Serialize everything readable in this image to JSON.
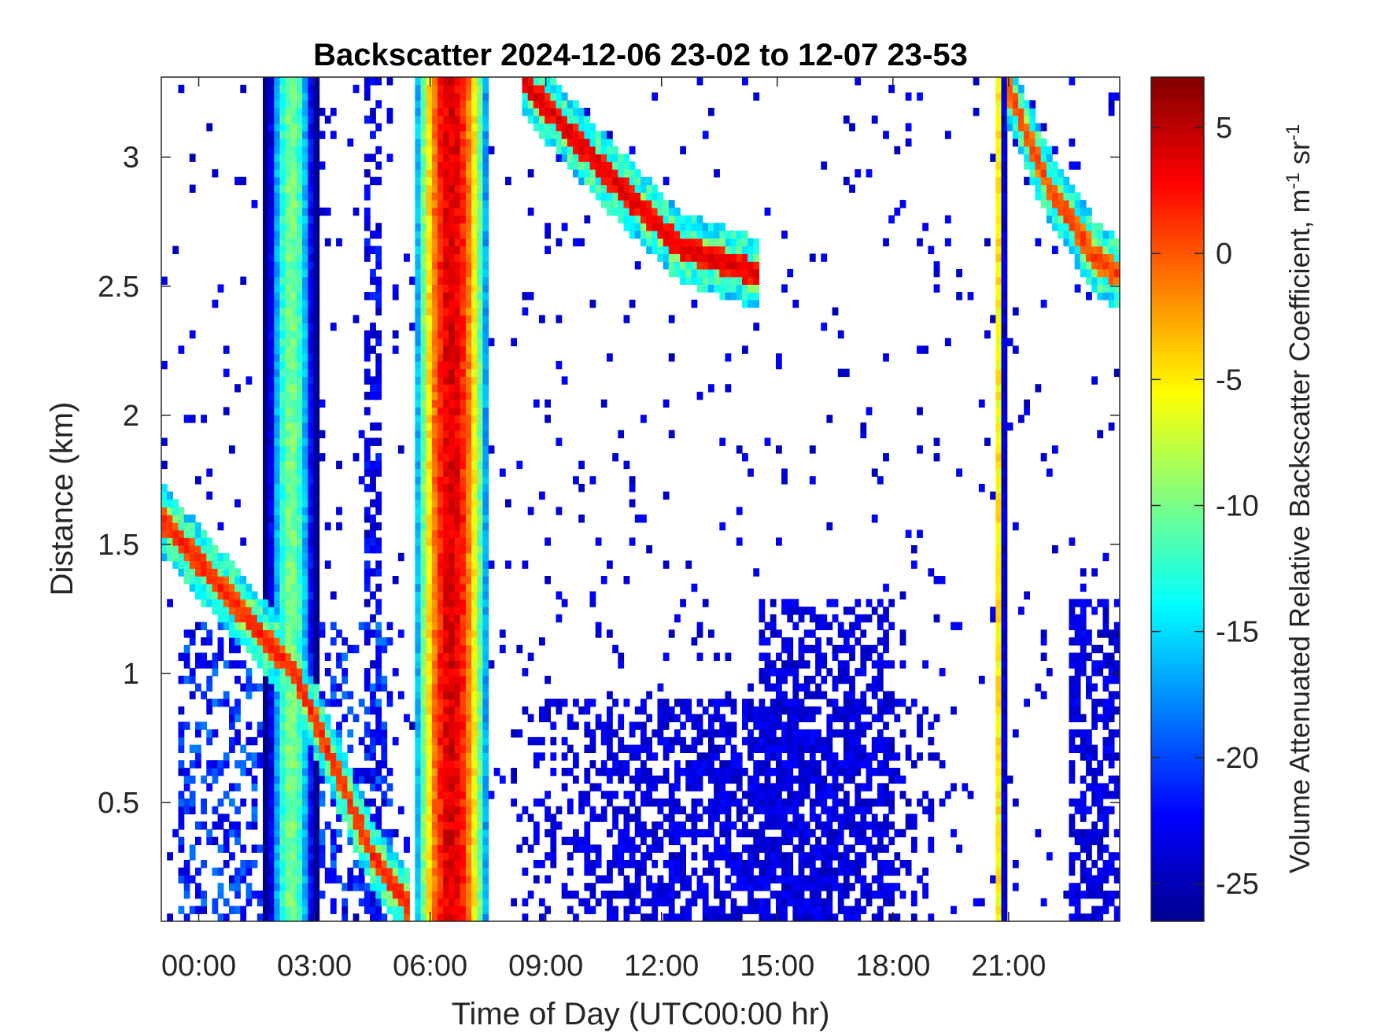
{
  "chart_data": {
    "type": "heatmap",
    "title": "Backscatter 2024-12-06 23-02 to 12-07 23-53",
    "xlabel": "Time of Day (UTC00:00 hr)",
    "ylabel": "Distance (km)",
    "colorbar_label": "Volume Attenuated Relative Backscatter Coefficient, m",
    "colorbar_label_sup1": "-1",
    "colorbar_label_mid": " sr",
    "colorbar_label_sup2": "-1",
    "colormap": "jet",
    "x_tick_labels": [
      "00:00",
      "03:00",
      "06:00",
      "09:00",
      "12:00",
      "15:00",
      "18:00",
      "21:00"
    ],
    "x_tick_hours": [
      0,
      3,
      6,
      9,
      12,
      15,
      18,
      21
    ],
    "xlim_hours": [
      -0.97,
      23.88
    ],
    "y_tick_labels": [
      "0.5",
      "1",
      "1.5",
      "2",
      "2.5",
      "3"
    ],
    "y_tick_values": [
      0.5,
      1,
      1.5,
      2,
      2.5,
      3
    ],
    "ylim_km": [
      0.04,
      3.31
    ],
    "colorbar_ticks": [
      5,
      0,
      -5,
      -10,
      -15,
      -20,
      -25
    ],
    "colorbar_ticks_labels": [
      "5",
      "0",
      "-5",
      "-10",
      "-15",
      "-20",
      "-25"
    ],
    "clim": [
      -26.5,
      7
    ],
    "features": [
      {
        "name": "descending layer (early)",
        "kind": "line",
        "points": [
          [
            -0.97,
            1.6
          ],
          [
            0.5,
            1.35
          ],
          [
            2.5,
            1.0
          ],
          [
            3.5,
            0.65
          ],
          [
            4.5,
            0.3
          ],
          [
            5.4,
            0.1
          ]
        ],
        "value": 1
      },
      {
        "name": "high layer (midday)",
        "kind": "line",
        "points": [
          [
            8.4,
            3.3
          ],
          [
            10.5,
            2.95
          ],
          [
            12.5,
            2.65
          ],
          [
            14.5,
            2.55
          ]
        ],
        "value": 3
      },
      {
        "name": "high layer (late)",
        "kind": "line",
        "points": [
          [
            20.9,
            3.3
          ],
          [
            22.0,
            2.9
          ],
          [
            23.3,
            2.6
          ],
          [
            23.88,
            2.55
          ]
        ],
        "value": 0
      },
      {
        "name": "precipitation column",
        "kind": "column",
        "x": [
          5.6,
          7.5
        ],
        "peak": 4
      },
      {
        "name": "column",
        "kind": "column",
        "x": [
          1.7,
          3.1
        ],
        "peak": -10
      },
      {
        "name": "thin column",
        "kind": "column",
        "x": [
          20.6,
          20.9
        ],
        "peak": -5
      }
    ]
  }
}
